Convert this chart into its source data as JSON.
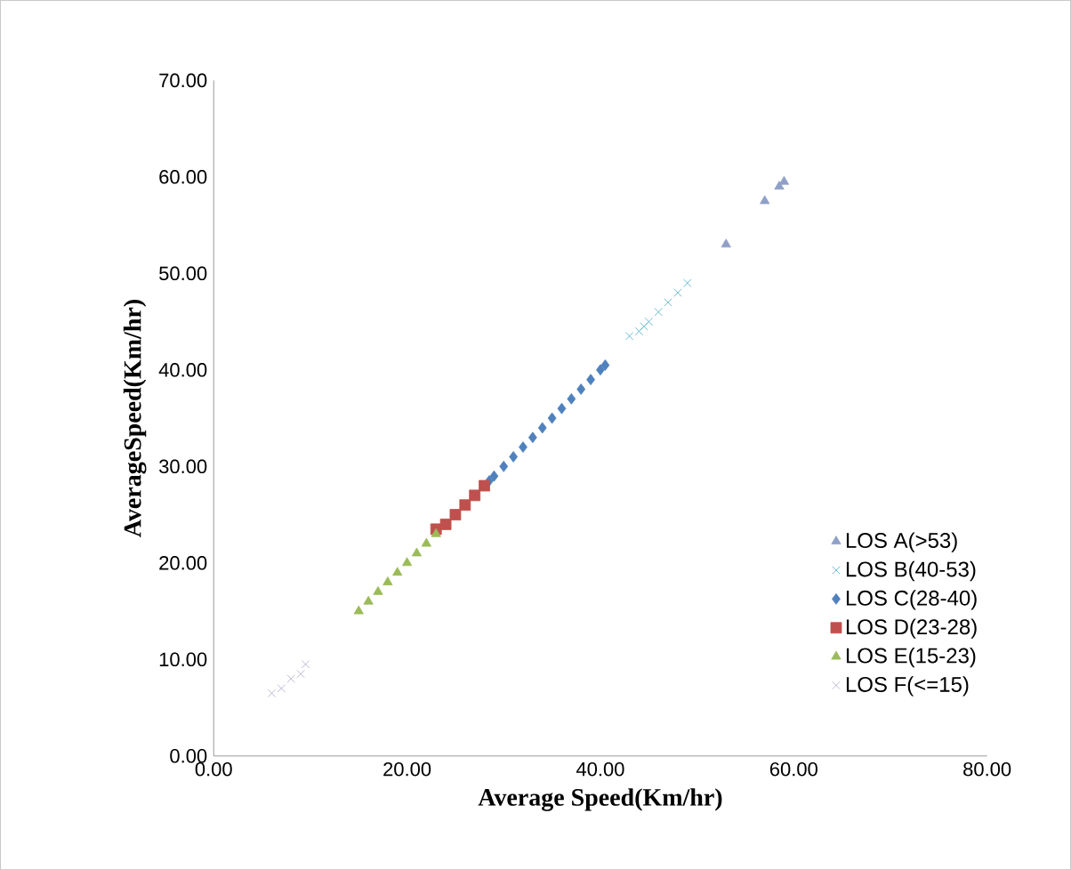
{
  "chart_data": {
    "type": "scatter",
    "xlabel": "Average Speed(Km/hr)",
    "ylabel": "AverageSpeed(Km/hr)",
    "xlim": [
      0,
      80
    ],
    "ylim": [
      0,
      70
    ],
    "xticks": [
      {
        "value": 0,
        "label": "0.00"
      },
      {
        "value": 20,
        "label": "20.00"
      },
      {
        "value": 40,
        "label": "40.00"
      },
      {
        "value": 60,
        "label": "60.00"
      },
      {
        "value": 80,
        "label": "80.00"
      }
    ],
    "yticks": [
      {
        "value": 0,
        "label": "0.00"
      },
      {
        "value": 10,
        "label": "10.00"
      },
      {
        "value": 20,
        "label": "20.00"
      },
      {
        "value": 30,
        "label": "30.00"
      },
      {
        "value": 40,
        "label": "40.00"
      },
      {
        "value": 50,
        "label": "50.00"
      },
      {
        "value": 60,
        "label": "60.00"
      },
      {
        "value": 70,
        "label": "70.00"
      }
    ],
    "grid": false,
    "legend": "right",
    "series": [
      {
        "name": "LOS A(>53)",
        "color": "#8fa0c8",
        "marker": "triangle",
        "x": [
          53,
          57,
          58.5,
          59
        ],
        "values": [
          53,
          57.5,
          59,
          59.5
        ]
      },
      {
        "name": "LOS B(40-53)",
        "color": "#4bacc6",
        "marker": "cross",
        "x": [
          43,
          44,
          44.5,
          45,
          46,
          47,
          48,
          49
        ],
        "values": [
          43.5,
          44,
          44.5,
          45,
          46,
          47,
          48,
          49
        ]
      },
      {
        "name": "LOS C(28-40)",
        "color": "#4f81bd",
        "marker": "diamond",
        "x": [
          28.5,
          29,
          30,
          31,
          32,
          33,
          34,
          35,
          36,
          37,
          38,
          39,
          40,
          40.5
        ],
        "values": [
          28.5,
          29,
          30,
          31,
          32,
          33,
          34,
          35,
          36,
          37,
          38,
          39,
          40,
          40.5
        ]
      },
      {
        "name": "LOS D(23-28)",
        "color": "#c0504d",
        "marker": "square",
        "x": [
          23,
          24,
          25,
          26,
          27,
          28
        ],
        "values": [
          23.5,
          24,
          25,
          26,
          27,
          28
        ]
      },
      {
        "name": "LOS E(15-23)",
        "color": "#9bbb59",
        "marker": "triangle",
        "x": [
          15,
          16,
          17,
          18,
          19,
          20,
          21,
          22,
          23
        ],
        "values": [
          15,
          16,
          17,
          18,
          19,
          20,
          21,
          22,
          23
        ]
      },
      {
        "name": "LOS F(<=15)",
        "color": "#a8a8c8",
        "marker": "cross",
        "x": [
          6,
          7,
          8,
          9,
          9.5
        ],
        "values": [
          6.5,
          7,
          8,
          8.5,
          9.5
        ]
      }
    ]
  }
}
